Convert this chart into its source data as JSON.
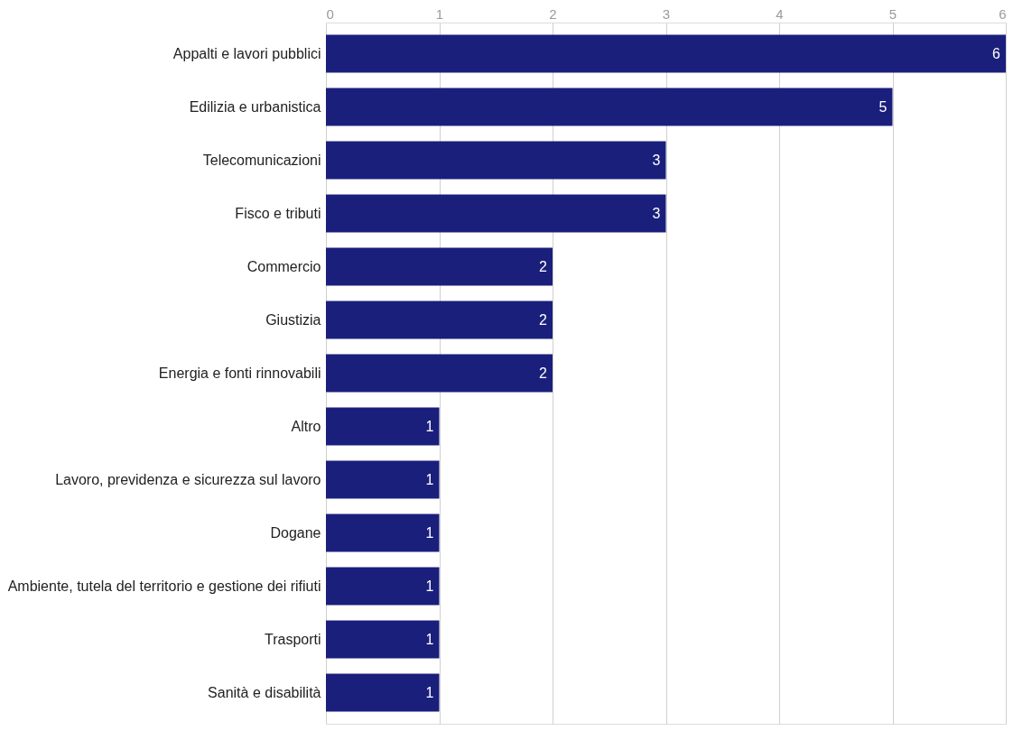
{
  "chart_data": {
    "type": "bar",
    "orientation": "horizontal",
    "categories": [
      "Appalti e lavori pubblici",
      "Edilizia e urbanistica",
      "Telecomunicazioni",
      "Fisco e tributi",
      "Commercio",
      "Giustizia",
      "Energia e fonti rinnovabili",
      "Altro",
      "Lavoro, previdenza e sicurezza sul lavoro",
      "Dogane",
      "Ambiente, tutela del territorio e gestione dei rifiuti",
      "Trasporti",
      "Sanità e disabilità"
    ],
    "values": [
      6,
      5,
      3,
      3,
      2,
      2,
      2,
      1,
      1,
      1,
      1,
      1,
      1
    ],
    "color": "#1a1f7c",
    "xlim": [
      0,
      6
    ],
    "xticks": [
      0,
      1,
      2,
      3,
      4,
      5,
      6
    ],
    "grid": "x",
    "data_labels": true
  }
}
